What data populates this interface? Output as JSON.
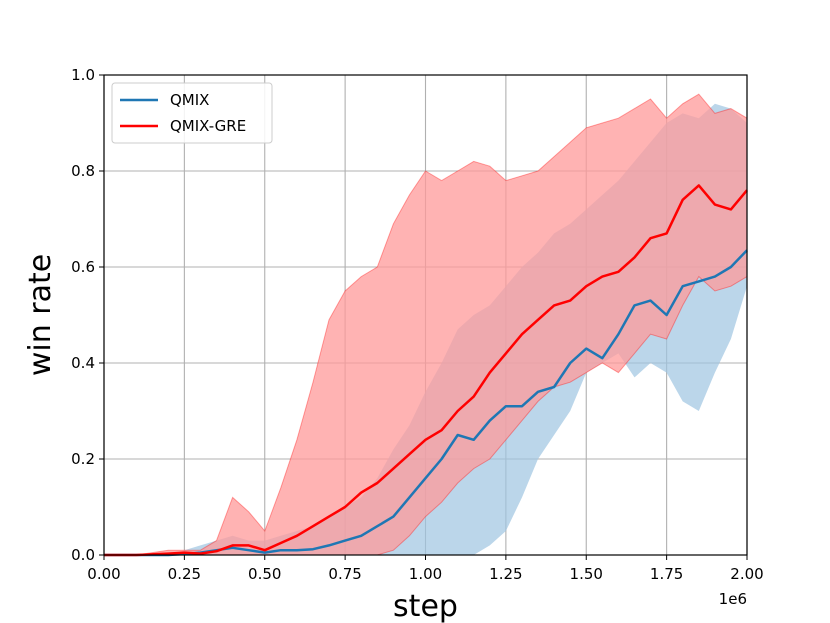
{
  "chart_data": {
    "type": "line",
    "xlabel": "step",
    "ylabel": "win rate",
    "x_offset_label": "1e6",
    "xlim": [
      0,
      2.0
    ],
    "ylim": [
      0,
      1.0
    ],
    "grid": true,
    "legend_position": "top-left",
    "x_ticks": [
      "0.00",
      "0.25",
      "0.50",
      "0.75",
      "1.00",
      "1.25",
      "1.50",
      "1.75",
      "2.00"
    ],
    "y_ticks": [
      "0.0",
      "0.2",
      "0.4",
      "0.6",
      "0.8",
      "1.0"
    ],
    "x": [
      0.0,
      0.1,
      0.2,
      0.25,
      0.3,
      0.35,
      0.4,
      0.45,
      0.5,
      0.55,
      0.6,
      0.65,
      0.7,
      0.75,
      0.8,
      0.85,
      0.9,
      0.95,
      1.0,
      1.05,
      1.1,
      1.15,
      1.2,
      1.25,
      1.3,
      1.35,
      1.4,
      1.45,
      1.5,
      1.55,
      1.6,
      1.65,
      1.7,
      1.75,
      1.8,
      1.85,
      1.9,
      1.95,
      2.0
    ],
    "series": [
      {
        "name": "QMIX",
        "color": "#1f77b4",
        "band_color": "#9ec5e1",
        "mean": [
          0.0,
          0.0,
          0.0,
          0.002,
          0.005,
          0.01,
          0.015,
          0.01,
          0.005,
          0.01,
          0.01,
          0.012,
          0.02,
          0.03,
          0.04,
          0.06,
          0.08,
          0.12,
          0.16,
          0.2,
          0.25,
          0.24,
          0.28,
          0.31,
          0.31,
          0.34,
          0.35,
          0.4,
          0.43,
          0.41,
          0.46,
          0.52,
          0.53,
          0.5,
          0.56,
          0.57,
          0.58,
          0.6,
          0.635
        ],
        "lower": [
          0.0,
          0.0,
          0.0,
          0.0,
          0.0,
          0.0,
          0.0,
          0.0,
          0.0,
          0.0,
          0.0,
          0.0,
          0.0,
          0.0,
          0.0,
          0.0,
          0.0,
          0.0,
          0.0,
          0.0,
          0.0,
          0.0,
          0.02,
          0.05,
          0.12,
          0.2,
          0.25,
          0.3,
          0.38,
          0.4,
          0.42,
          0.37,
          0.4,
          0.38,
          0.32,
          0.3,
          0.38,
          0.45,
          0.56
        ],
        "upper": [
          0.0,
          0.0,
          0.0,
          0.01,
          0.02,
          0.03,
          0.04,
          0.03,
          0.03,
          0.04,
          0.05,
          0.06,
          0.08,
          0.1,
          0.12,
          0.16,
          0.22,
          0.27,
          0.34,
          0.4,
          0.47,
          0.5,
          0.52,
          0.56,
          0.6,
          0.63,
          0.67,
          0.69,
          0.72,
          0.75,
          0.78,
          0.82,
          0.86,
          0.9,
          0.92,
          0.91,
          0.94,
          0.93,
          0.9
        ]
      },
      {
        "name": "QMIX-GRE",
        "color": "#ff0000",
        "band_color": "#ff9999",
        "mean": [
          0.0,
          0.0,
          0.003,
          0.005,
          0.003,
          0.008,
          0.02,
          0.02,
          0.01,
          0.025,
          0.04,
          0.06,
          0.08,
          0.1,
          0.13,
          0.15,
          0.18,
          0.21,
          0.24,
          0.26,
          0.3,
          0.33,
          0.38,
          0.42,
          0.46,
          0.49,
          0.52,
          0.53,
          0.56,
          0.58,
          0.59,
          0.62,
          0.66,
          0.67,
          0.74,
          0.77,
          0.73,
          0.72,
          0.76
        ]
      }
    ],
    "qmix_gre_band": {
      "lower": [
        0.0,
        0.0,
        0.0,
        0.0,
        0.0,
        0.0,
        0.0,
        0.0,
        0.0,
        0.0,
        0.0,
        0.0,
        0.0,
        0.0,
        0.0,
        0.0,
        0.01,
        0.04,
        0.08,
        0.11,
        0.15,
        0.18,
        0.2,
        0.24,
        0.28,
        0.32,
        0.35,
        0.36,
        0.38,
        0.4,
        0.38,
        0.42,
        0.46,
        0.45,
        0.52,
        0.58,
        0.55,
        0.56,
        0.58
      ],
      "upper": [
        0.0,
        0.0,
        0.01,
        0.01,
        0.01,
        0.03,
        0.12,
        0.09,
        0.05,
        0.14,
        0.24,
        0.36,
        0.49,
        0.55,
        0.58,
        0.6,
        0.69,
        0.75,
        0.8,
        0.78,
        0.8,
        0.82,
        0.81,
        0.78,
        0.79,
        0.8,
        0.83,
        0.86,
        0.89,
        0.9,
        0.91,
        0.93,
        0.95,
        0.91,
        0.94,
        0.96,
        0.92,
        0.93,
        0.91
      ]
    }
  }
}
